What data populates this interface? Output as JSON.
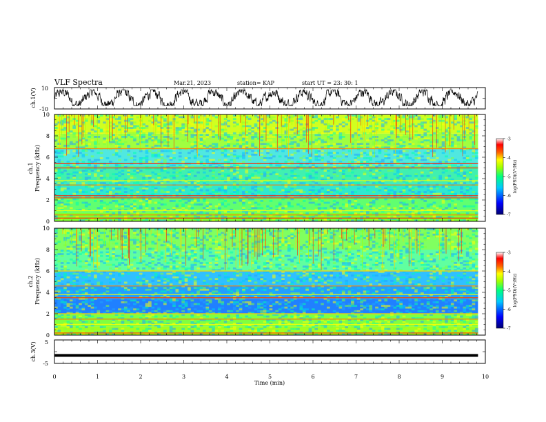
{
  "header": {
    "title": "VLF Spectra",
    "date": "Mar.21, 2023",
    "station": "station= KAP",
    "start": "start  UT  =   23: 30: 1"
  },
  "chart_data": [
    {
      "type": "line",
      "ylabel": "ch.1(V)",
      "ylim": [
        -10,
        10
      ],
      "yticks": [
        10,
        -10
      ],
      "xlim": [
        0,
        10
      ],
      "x_end": 9.83,
      "description_values": {
        "mean": 0,
        "amplitude_range": [
          -6,
          7
        ]
      }
    },
    {
      "type": "heatmap",
      "ylabel_channel": "ch.1",
      "ylabel": "Frequency  (kHz)",
      "ylim": [
        0,
        10
      ],
      "yticks": [
        0,
        2,
        4,
        6,
        8,
        10
      ],
      "xlim": [
        0,
        10
      ],
      "x_end": 9.83,
      "colorbar": {
        "label": "log(PSD)(V²/Hz)",
        "range": [
          -7,
          -3
        ],
        "ticks": [
          -3,
          -4,
          -5,
          -6,
          -7
        ],
        "colors": [
          "#000080",
          "#0000ff",
          "#00c0ff",
          "#00ff80",
          "#80ff00",
          "#ffff00",
          "#ff8000",
          "#ff0000",
          "#ffffff"
        ]
      },
      "bands_khz": [
        0.3,
        0.6,
        1.0,
        2.2,
        2.4,
        3.4,
        3.8,
        5.0,
        5.4,
        6.8
      ]
    },
    {
      "type": "heatmap",
      "ylabel_channel": "ch.2",
      "ylabel": "Frequency  (kHz)",
      "ylim": [
        0,
        10
      ],
      "yticks": [
        0,
        2,
        4,
        6,
        8,
        10
      ],
      "xlim": [
        0,
        10
      ],
      "x_end": 9.83,
      "colorbar": {
        "label": "log(PSD)(V²/Hz)",
        "range": [
          -7,
          -3
        ],
        "ticks": [
          -3,
          -4,
          -5,
          -6,
          -7
        ]
      },
      "bands_khz": [
        0.2,
        1.0,
        1.5,
        2.0,
        3.5,
        3.8,
        4.6,
        6.0
      ]
    },
    {
      "type": "line",
      "ylabel": "ch.3(V)",
      "ylim": [
        -5,
        5
      ],
      "yticks": [
        5,
        0,
        -5
      ],
      "xlim": [
        0,
        10
      ],
      "x_end": 9.83,
      "xlabel": "Time  (min)",
      "xticks": [
        0,
        1,
        2,
        3,
        4,
        5,
        6,
        7,
        8,
        9,
        10
      ],
      "values_constant": -1.6
    }
  ]
}
